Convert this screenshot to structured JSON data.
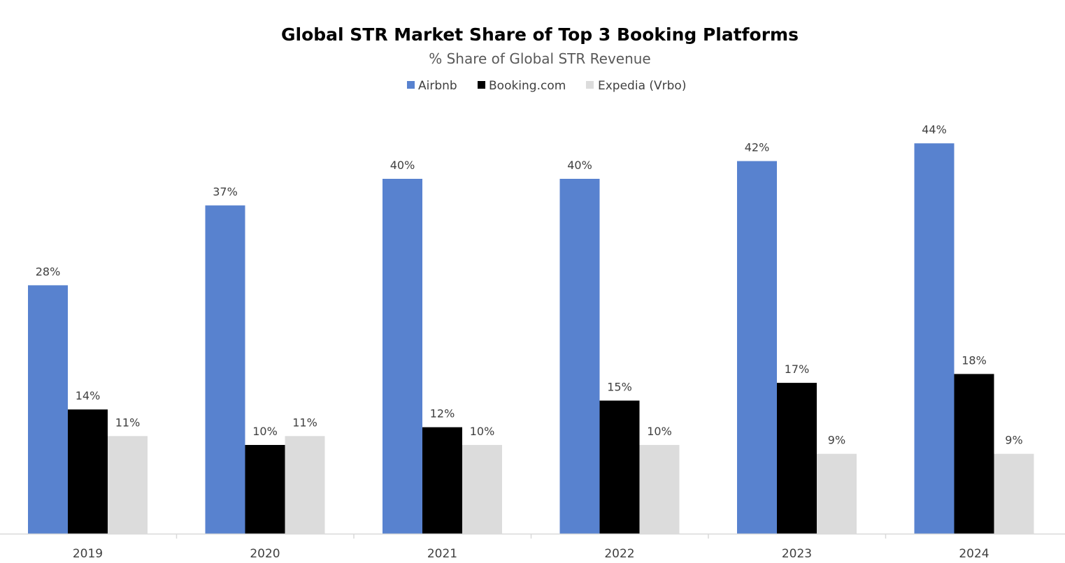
{
  "chart_data": {
    "type": "bar",
    "title": "Global STR Market Share of Top 3 Booking Platforms",
    "subtitle": "% Share of Global STR Revenue",
    "categories": [
      "2019",
      "2020",
      "2021",
      "2022",
      "2023",
      "2024"
    ],
    "series": [
      {
        "name": "Airbnb",
        "color": "#5882cf",
        "values": [
          28,
          37,
          40,
          40,
          42,
          44
        ],
        "labels": [
          "28%",
          "37%",
          "40%",
          "40%",
          "42%",
          "44%"
        ]
      },
      {
        "name": "Booking.com",
        "color": "#000000",
        "values": [
          14,
          10,
          12,
          15,
          17,
          18
        ],
        "labels": [
          "14%",
          "10%",
          "12%",
          "15%",
          "17%",
          "18%"
        ]
      },
      {
        "name": "Expedia (Vrbo)",
        "color": "#dcdcdc",
        "values": [
          11,
          11,
          10,
          10,
          9,
          9
        ],
        "labels": [
          "11%",
          "11%",
          "10%",
          "10%",
          "9%",
          "9%"
        ]
      }
    ],
    "xlabel": "",
    "ylabel": "",
    "ylim": [
      0,
      46
    ],
    "legend": "top-center",
    "grid": false,
    "axis_color": "#d9d9d9"
  }
}
